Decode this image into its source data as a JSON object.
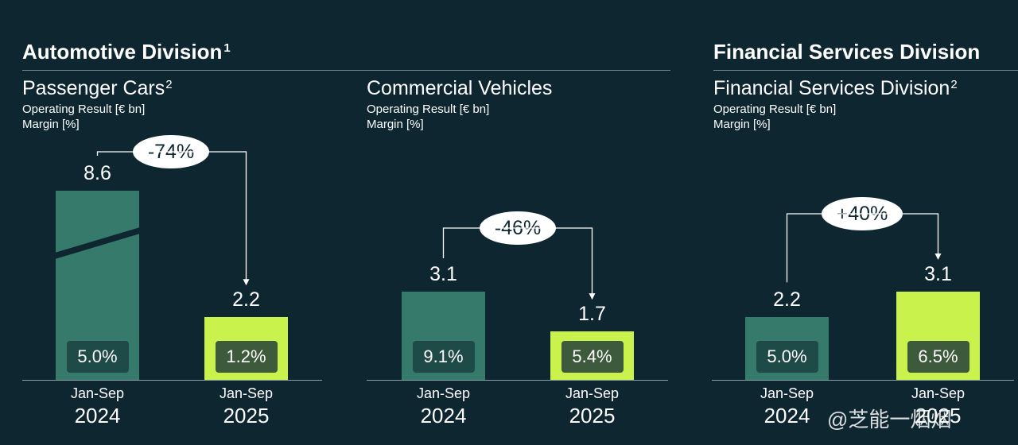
{
  "divisions": {
    "automotive": {
      "title": "Automotive Division",
      "footnote": "1"
    },
    "financial": {
      "title": "Financial Services Division"
    }
  },
  "chart_data": [
    {
      "type": "bar",
      "title": "Passenger Cars",
      "title_footnote": "2",
      "ylabel": "Operating Result [€ bn]",
      "ylabel2": "Margin [%]",
      "categories": [
        {
          "month": "Jan-Sep",
          "year": "2024"
        },
        {
          "month": "Jan-Sep",
          "year": "2025"
        }
      ],
      "values": [
        8.6,
        2.2
      ],
      "value_labels": [
        "8.6",
        "2.2"
      ],
      "margins": [
        "5.0%",
        "1.2%"
      ],
      "change": "-74%",
      "axis_break_on_first_bar": true,
      "colors": [
        "#357a6b",
        "#c9f24c"
      ]
    },
    {
      "type": "bar",
      "title": "Commercial Vehicles",
      "ylabel": "Operating Result [€ bn]",
      "ylabel2": "Margin [%]",
      "categories": [
        {
          "month": "Jan-Sep",
          "year": "2024"
        },
        {
          "month": "Jan-Sep",
          "year": "2025"
        }
      ],
      "values": [
        3.1,
        1.7
      ],
      "value_labels": [
        "3.1",
        "1.7"
      ],
      "margins": [
        "9.1%",
        "5.4%"
      ],
      "change": "-46%",
      "colors": [
        "#357a6b",
        "#c9f24c"
      ]
    },
    {
      "type": "bar",
      "title": "Financial Services Division",
      "title_footnote": "2",
      "ylabel": "Operating Result [€ bn]",
      "ylabel2": "Margin [%]",
      "categories": [
        {
          "month": "Jan-Sep",
          "year": "2024"
        },
        {
          "month": "Jan-Sep",
          "year": "2025"
        }
      ],
      "values": [
        2.2,
        3.1
      ],
      "value_labels": [
        "2.2",
        "3.1"
      ],
      "margins": [
        "5.0%",
        "6.5%"
      ],
      "change": "+40%",
      "colors": [
        "#357a6b",
        "#c9f24c"
      ]
    }
  ],
  "watermark": {
    "text": "@芝能一烟烟"
  }
}
